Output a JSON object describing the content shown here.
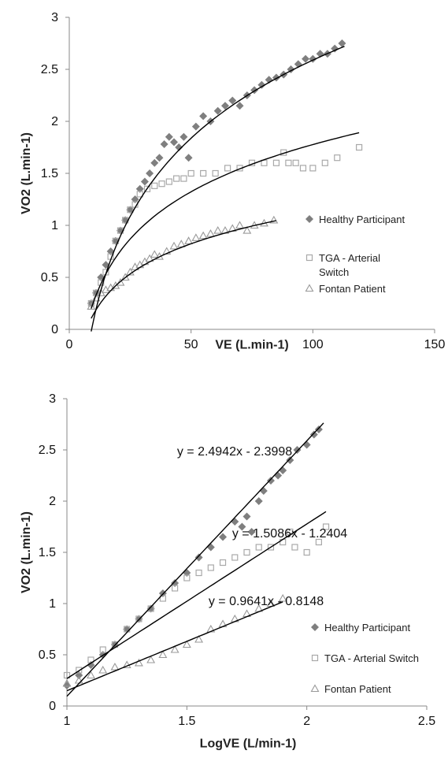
{
  "chart_data": [
    {
      "type": "scatter",
      "xlabel": "VE (L.min-1)",
      "ylabel": "VO2 (L.min-1)",
      "xlim": [
        0,
        150
      ],
      "ylim": [
        0,
        3
      ],
      "x_ticks": [
        "0",
        "50",
        "100",
        "150"
      ],
      "y_ticks": [
        "0",
        "0.5",
        "1",
        "1.5",
        "2",
        "2.5",
        "3"
      ],
      "grid": false,
      "legend_position": "right",
      "legend": [
        "Healthy Participant",
        "TGA - Arterial Switch",
        "Fontan Patient"
      ],
      "series": [
        {
          "name": "Healthy Participant",
          "marker": "diamond",
          "color": "#7f7f7f",
          "x": [
            9,
            11,
            13,
            15,
            17,
            19,
            21,
            23,
            25,
            27,
            29,
            31,
            33,
            35,
            37,
            39,
            41,
            43,
            45,
            47,
            49,
            52,
            55,
            58,
            61,
            64,
            67,
            70,
            73,
            76,
            79,
            82,
            85,
            88,
            91,
            94,
            97,
            100,
            103,
            106,
            109,
            112
          ],
          "y": [
            0.25,
            0.35,
            0.5,
            0.62,
            0.75,
            0.85,
            0.95,
            1.05,
            1.15,
            1.25,
            1.35,
            1.42,
            1.5,
            1.6,
            1.65,
            1.78,
            1.85,
            1.8,
            1.75,
            1.85,
            1.65,
            1.95,
            2.05,
            2.0,
            2.1,
            2.15,
            2.2,
            2.15,
            2.25,
            2.3,
            2.35,
            2.4,
            2.42,
            2.45,
            2.5,
            2.55,
            2.6,
            2.6,
            2.65,
            2.65,
            2.7,
            2.75
          ]
        },
        {
          "name": "TGA - Arterial Switch",
          "marker": "square",
          "color": "#a9a9a9",
          "x": [
            9,
            11,
            13,
            15,
            17,
            19,
            21,
            23,
            25,
            27,
            29,
            32,
            35,
            38,
            41,
            44,
            47,
            50,
            55,
            60,
            65,
            70,
            75,
            80,
            85,
            88,
            90,
            93,
            96,
            100,
            105,
            110,
            119
          ],
          "y": [
            0.25,
            0.35,
            0.45,
            0.55,
            0.7,
            0.85,
            0.95,
            1.05,
            1.15,
            1.2,
            1.3,
            1.35,
            1.38,
            1.4,
            1.42,
            1.45,
            1.45,
            1.5,
            1.5,
            1.5,
            1.55,
            1.55,
            1.6,
            1.6,
            1.6,
            1.7,
            1.6,
            1.6,
            1.55,
            1.55,
            1.6,
            1.65,
            1.75
          ]
        },
        {
          "name": "Fontan Patient",
          "marker": "triangle",
          "color": "#999999",
          "x": [
            9,
            11,
            13,
            15,
            17,
            19,
            21,
            23,
            25,
            27,
            29,
            31,
            33,
            35,
            37,
            40,
            43,
            46,
            49,
            52,
            55,
            58,
            61,
            64,
            67,
            70,
            73,
            76,
            80,
            84
          ],
          "y": [
            0.22,
            0.3,
            0.35,
            0.38,
            0.4,
            0.42,
            0.45,
            0.5,
            0.55,
            0.6,
            0.62,
            0.65,
            0.68,
            0.72,
            0.7,
            0.75,
            0.8,
            0.82,
            0.85,
            0.88,
            0.9,
            0.92,
            0.95,
            0.95,
            0.97,
            1.0,
            0.95,
            1.0,
            1.02,
            1.05
          ]
        }
      ],
      "trendlines": [
        {
          "series": "Healthy Participant",
          "form": "log",
          "a": 2.4942,
          "b": -2.3998,
          "x_range": [
            9,
            113
          ]
        },
        {
          "series": "TGA - Arterial Switch",
          "form": "log",
          "a": 1.5086,
          "b": -1.2404,
          "x_range": [
            9,
            119
          ]
        },
        {
          "series": "Fontan Patient",
          "form": "log",
          "a": 0.9641,
          "b": -0.8148,
          "x_range": [
            9,
            85
          ]
        }
      ]
    },
    {
      "type": "scatter",
      "xlabel": "LogVE (L/min-1)",
      "ylabel": "VO2 (L.min-1)",
      "xlim": [
        1,
        2.5
      ],
      "ylim": [
        0,
        3
      ],
      "x_ticks": [
        "1",
        "1.5",
        "2",
        "2.5"
      ],
      "y_ticks": [
        "0",
        "0.5",
        "1",
        "1.5",
        "2",
        "2.5",
        "3"
      ],
      "grid": false,
      "legend_position": "right",
      "legend": [
        "Healthy Participant",
        "TGA - Arterial Switch",
        "Fontan Patient"
      ],
      "series": [
        {
          "name": "Healthy Participant",
          "marker": "diamond",
          "color": "#7f7f7f",
          "x": [
            1.0,
            1.05,
            1.1,
            1.15,
            1.2,
            1.25,
            1.3,
            1.35,
            1.4,
            1.45,
            1.5,
            1.55,
            1.6,
            1.65,
            1.7,
            1.73,
            1.75,
            1.77,
            1.8,
            1.82,
            1.85,
            1.88,
            1.9,
            1.93,
            1.96,
            2.0,
            2.03,
            2.05
          ],
          "y": [
            0.2,
            0.3,
            0.4,
            0.5,
            0.6,
            0.75,
            0.85,
            0.95,
            1.1,
            1.2,
            1.3,
            1.45,
            1.55,
            1.65,
            1.8,
            1.75,
            1.85,
            1.7,
            2.0,
            2.1,
            2.2,
            2.25,
            2.3,
            2.4,
            2.5,
            2.55,
            2.65,
            2.7
          ]
        },
        {
          "name": "TGA - Arterial Switch",
          "marker": "square",
          "color": "#a9a9a9",
          "x": [
            1.0,
            1.05,
            1.1,
            1.15,
            1.2,
            1.25,
            1.3,
            1.35,
            1.4,
            1.45,
            1.5,
            1.55,
            1.6,
            1.65,
            1.7,
            1.75,
            1.8,
            1.85,
            1.9,
            1.93,
            1.95,
            2.0,
            2.05,
            2.08
          ],
          "y": [
            0.3,
            0.35,
            0.45,
            0.55,
            0.6,
            0.75,
            0.85,
            0.95,
            1.05,
            1.15,
            1.25,
            1.3,
            1.35,
            1.4,
            1.45,
            1.5,
            1.55,
            1.55,
            1.6,
            1.7,
            1.55,
            1.5,
            1.6,
            1.75
          ]
        },
        {
          "name": "Fontan Patient",
          "marker": "triangle",
          "color": "#999999",
          "x": [
            1.0,
            1.05,
            1.1,
            1.15,
            1.2,
            1.25,
            1.3,
            1.35,
            1.4,
            1.45,
            1.5,
            1.55,
            1.6,
            1.65,
            1.7,
            1.75,
            1.8,
            1.85,
            1.9
          ],
          "y": [
            0.22,
            0.25,
            0.3,
            0.35,
            0.38,
            0.4,
            0.42,
            0.45,
            0.5,
            0.55,
            0.6,
            0.65,
            0.75,
            0.8,
            0.85,
            0.9,
            0.95,
            1.0,
            1.05
          ]
        }
      ],
      "trendlines": [
        {
          "series": "Healthy Participant",
          "equation": "y = 2.4942x - 2.3998",
          "slope": 2.4942,
          "intercept": -2.3998,
          "x_range": [
            1.0,
            2.07
          ]
        },
        {
          "series": "TGA - Arterial Switch",
          "equation": "y = 1.5086x - 1.2404",
          "slope": 1.5086,
          "intercept": -1.2404,
          "x_range": [
            1.0,
            2.08
          ]
        },
        {
          "series": "Fontan Patient",
          "equation": "y = 0.9641x - 0.8148",
          "slope": 0.9641,
          "intercept": -0.8148,
          "x_range": [
            1.0,
            1.9
          ]
        }
      ]
    }
  ]
}
